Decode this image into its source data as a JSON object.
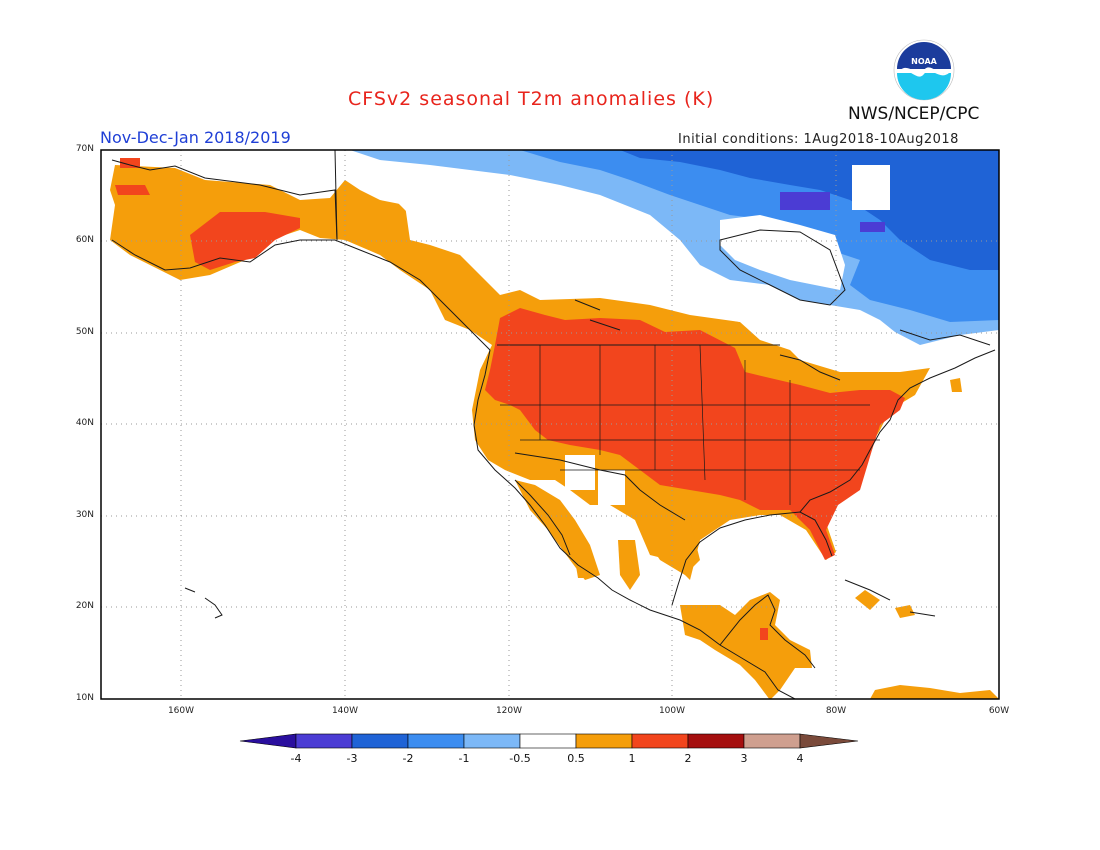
{
  "title": "CFSv2 seasonal T2m anomalies (K)",
  "period": "Nov-Dec-Jan 2018/2019",
  "initial_conditions": "Initial conditions: 1Aug2018-10Aug2018",
  "agency": "NWS/NCEP/CPC",
  "logo_text": "NOAA",
  "axes": {
    "lat_labels": [
      "70N",
      "60N",
      "50N",
      "40N",
      "30N",
      "20N",
      "10N"
    ],
    "lon_labels": [
      "160W",
      "140W",
      "120W",
      "100W",
      "80W",
      "60W"
    ]
  },
  "colorbar": {
    "labels": [
      "-4",
      "-3",
      "-2",
      "-1",
      "-0.5",
      "0.5",
      "1",
      "2",
      "3",
      "4"
    ],
    "colors": [
      "#2a0f9e",
      "#4b3cd4",
      "#1f63d6",
      "#3c8df0",
      "#7cb8f7",
      "#ffffff",
      "#f59e0b",
      "#f2451d",
      "#a50f0f",
      "#cf9f8f",
      "#7a4a3a"
    ]
  },
  "colors": {
    "frame": "#000000",
    "grid": "#9a9a9a",
    "coast": "#1a1a1a",
    "warm1": "#f59e0b",
    "warm2": "#f2451d",
    "cool1": "#7cb8f7",
    "cool2": "#3c8df0",
    "cool3": "#1f63d6",
    "cool4": "#4b3cd4"
  }
}
